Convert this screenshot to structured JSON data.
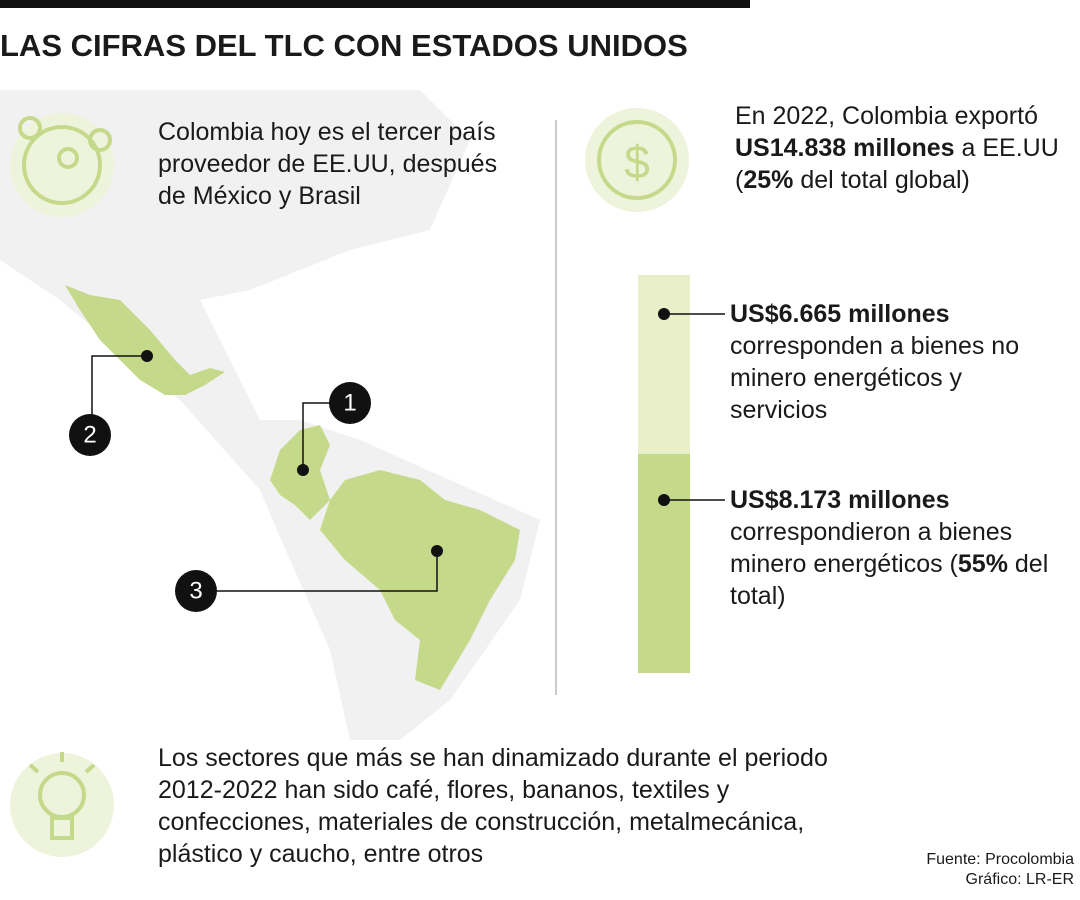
{
  "title": "LAS CIFRAS DEL TLC CON ESTADOS UNIDOS",
  "supplier_fact": "Colombia hoy es el tercer país proveedor de EE.UU, después de México y Brasil",
  "map_markers": [
    "1",
    "2",
    "3"
  ],
  "export_fact": {
    "intro": "En 2022, Colombia exportó",
    "amount": "US14.838 millones",
    "middle": "a EE.UU (",
    "share": "25%",
    "end": "del total global)"
  },
  "breakdown": {
    "segments": [
      {
        "label": "US$6.665 millones",
        "value": 6665,
        "text": "corresponden a bienes no minero energéticos y servicios",
        "color": "#e8efc9"
      },
      {
        "label": "US$8.173 millones",
        "value": 8173,
        "text": "correspondieron a bienes minero energéticos (",
        "share": "55%",
        "end": "del total)",
        "color": "#c5d98a"
      }
    ]
  },
  "sectors_fact": "Los sectores que más se han dinamizado durante el periodo 2012-2022 han sido café, flores, bananos, textiles y confecciones, materiales de construcción, metalmecánica, plástico y caucho, entre otros",
  "source": "Fuente: Procolombia",
  "credit": "Gráfico: LR-ER"
}
